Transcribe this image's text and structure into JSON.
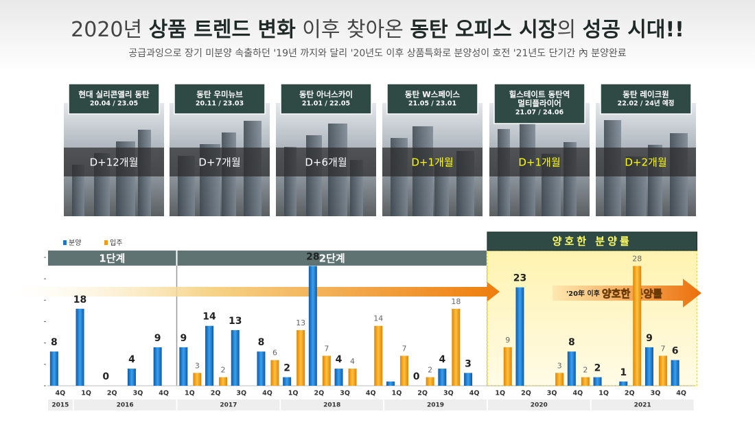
{
  "header": {
    "title": [
      {
        "text": "2020년 ",
        "bold": false
      },
      {
        "text": "상품 트렌드 변화",
        "bold": true
      },
      {
        "text": " 이후 찾아온 ",
        "bold": false
      },
      {
        "text": "동탄 오피스 시장",
        "bold": true
      },
      {
        "text": "의 ",
        "bold": false
      },
      {
        "text": "성공 시대!!",
        "bold": true
      }
    ],
    "subtitle": "공급과잉으로 장기 미분양 속출하던 '19년 까지와 달리 '20년도 이후 상품특화로 분양성이 호전  '21년도 단기간 內 분양완료"
  },
  "cards": [
    {
      "name": [
        "현대 실리콘앨리 동탄"
      ],
      "period": "20.04 / 23.05",
      "badge": "D+12개월",
      "badge_color": "#ffffff"
    },
    {
      "name": [
        "동탄 우미뉴브"
      ],
      "period": "20.11 / 23.03",
      "badge": "D+7개월",
      "badge_color": "#ffffff"
    },
    {
      "name": [
        "동탄 아너스카이"
      ],
      "period": "21.01 / 22.05",
      "badge": "D+6개월",
      "badge_color": "#ffffff"
    },
    {
      "name": [
        "동탄 W스페이스"
      ],
      "period": "21.05 / 23.01",
      "badge": "D+1개월",
      "badge_color": "#ffff00"
    },
    {
      "name": [
        "힐스테이트 동탄역",
        "멀티플라이어"
      ],
      "period": "21.07 / 24.06",
      "badge": "D+1개월",
      "badge_color": "#ffff00"
    },
    {
      "name": [
        "동탄 레이크원"
      ],
      "period": "22.02 / 24년 예정",
      "badge": "D+2개월",
      "badge_color": "#ffff00"
    }
  ],
  "chart_data": {
    "type": "bar",
    "phases": [
      {
        "label": "1단계",
        "highlight": false,
        "groups": [
          {
            "year": "2015",
            "quarters": [
              "4Q"
            ]
          },
          {
            "year": "2016",
            "quarters": [
              "1Q",
              "2Q",
              "3Q",
              "4Q"
            ]
          }
        ]
      },
      {
        "label": "2단계",
        "highlight": false,
        "groups": [
          {
            "year": "2017",
            "quarters": [
              "1Q",
              "2Q",
              "3Q",
              "4Q"
            ]
          },
          {
            "year": "2018",
            "quarters": [
              "1Q",
              "2Q",
              "3Q",
              "4Q"
            ]
          },
          {
            "year": "2019",
            "quarters": [
              "1Q",
              "2Q",
              "3Q",
              "4Q"
            ]
          }
        ]
      },
      {
        "label": "양호한 분양률",
        "highlight": true,
        "groups": [
          {
            "year": "2020",
            "quarters": [
              "1Q",
              "2Q",
              "3Q",
              "4Q"
            ]
          },
          {
            "year": "2021",
            "quarters": [
              "1Q",
              "2Q",
              "3Q",
              "4Q"
            ]
          }
        ]
      }
    ],
    "series": [
      {
        "name": "분양",
        "color": "#1f74c6",
        "values": [
          8,
          18,
          0,
          4,
          9,
          9,
          14,
          13,
          8,
          2,
          28,
          4,
          null,
          1,
          0,
          4,
          3,
          null,
          23,
          null,
          8,
          2,
          1,
          9,
          6
        ],
        "value_labels": [
          "8",
          "18",
          "0",
          "4",
          "9",
          "9",
          "14",
          "13",
          "8",
          "2",
          "28",
          "4",
          null,
          null,
          "0",
          "4",
          "3",
          null,
          "23",
          null,
          "8",
          "2",
          "1",
          "9",
          "6"
        ]
      },
      {
        "name": "입주",
        "color": "#f29a1a",
        "values": [
          null,
          null,
          null,
          null,
          null,
          3,
          2,
          null,
          6,
          13,
          7,
          4,
          14,
          7,
          2,
          18,
          null,
          9,
          null,
          3,
          2,
          null,
          28,
          7,
          null
        ],
        "value_labels": [
          null,
          null,
          null,
          null,
          null,
          "3",
          "2",
          null,
          "6",
          "13",
          "7",
          "4",
          "14",
          "7",
          "2",
          "18",
          null,
          "9",
          null,
          "3",
          "2",
          null,
          "28",
          "7",
          null
        ]
      }
    ],
    "ylim": [
      0,
      30
    ],
    "yticks": [
      0,
      5,
      10,
      15,
      20,
      25,
      30
    ],
    "annotation": {
      "prefix": "'20年 이후",
      "emphasis": "양호한 분양률"
    }
  }
}
